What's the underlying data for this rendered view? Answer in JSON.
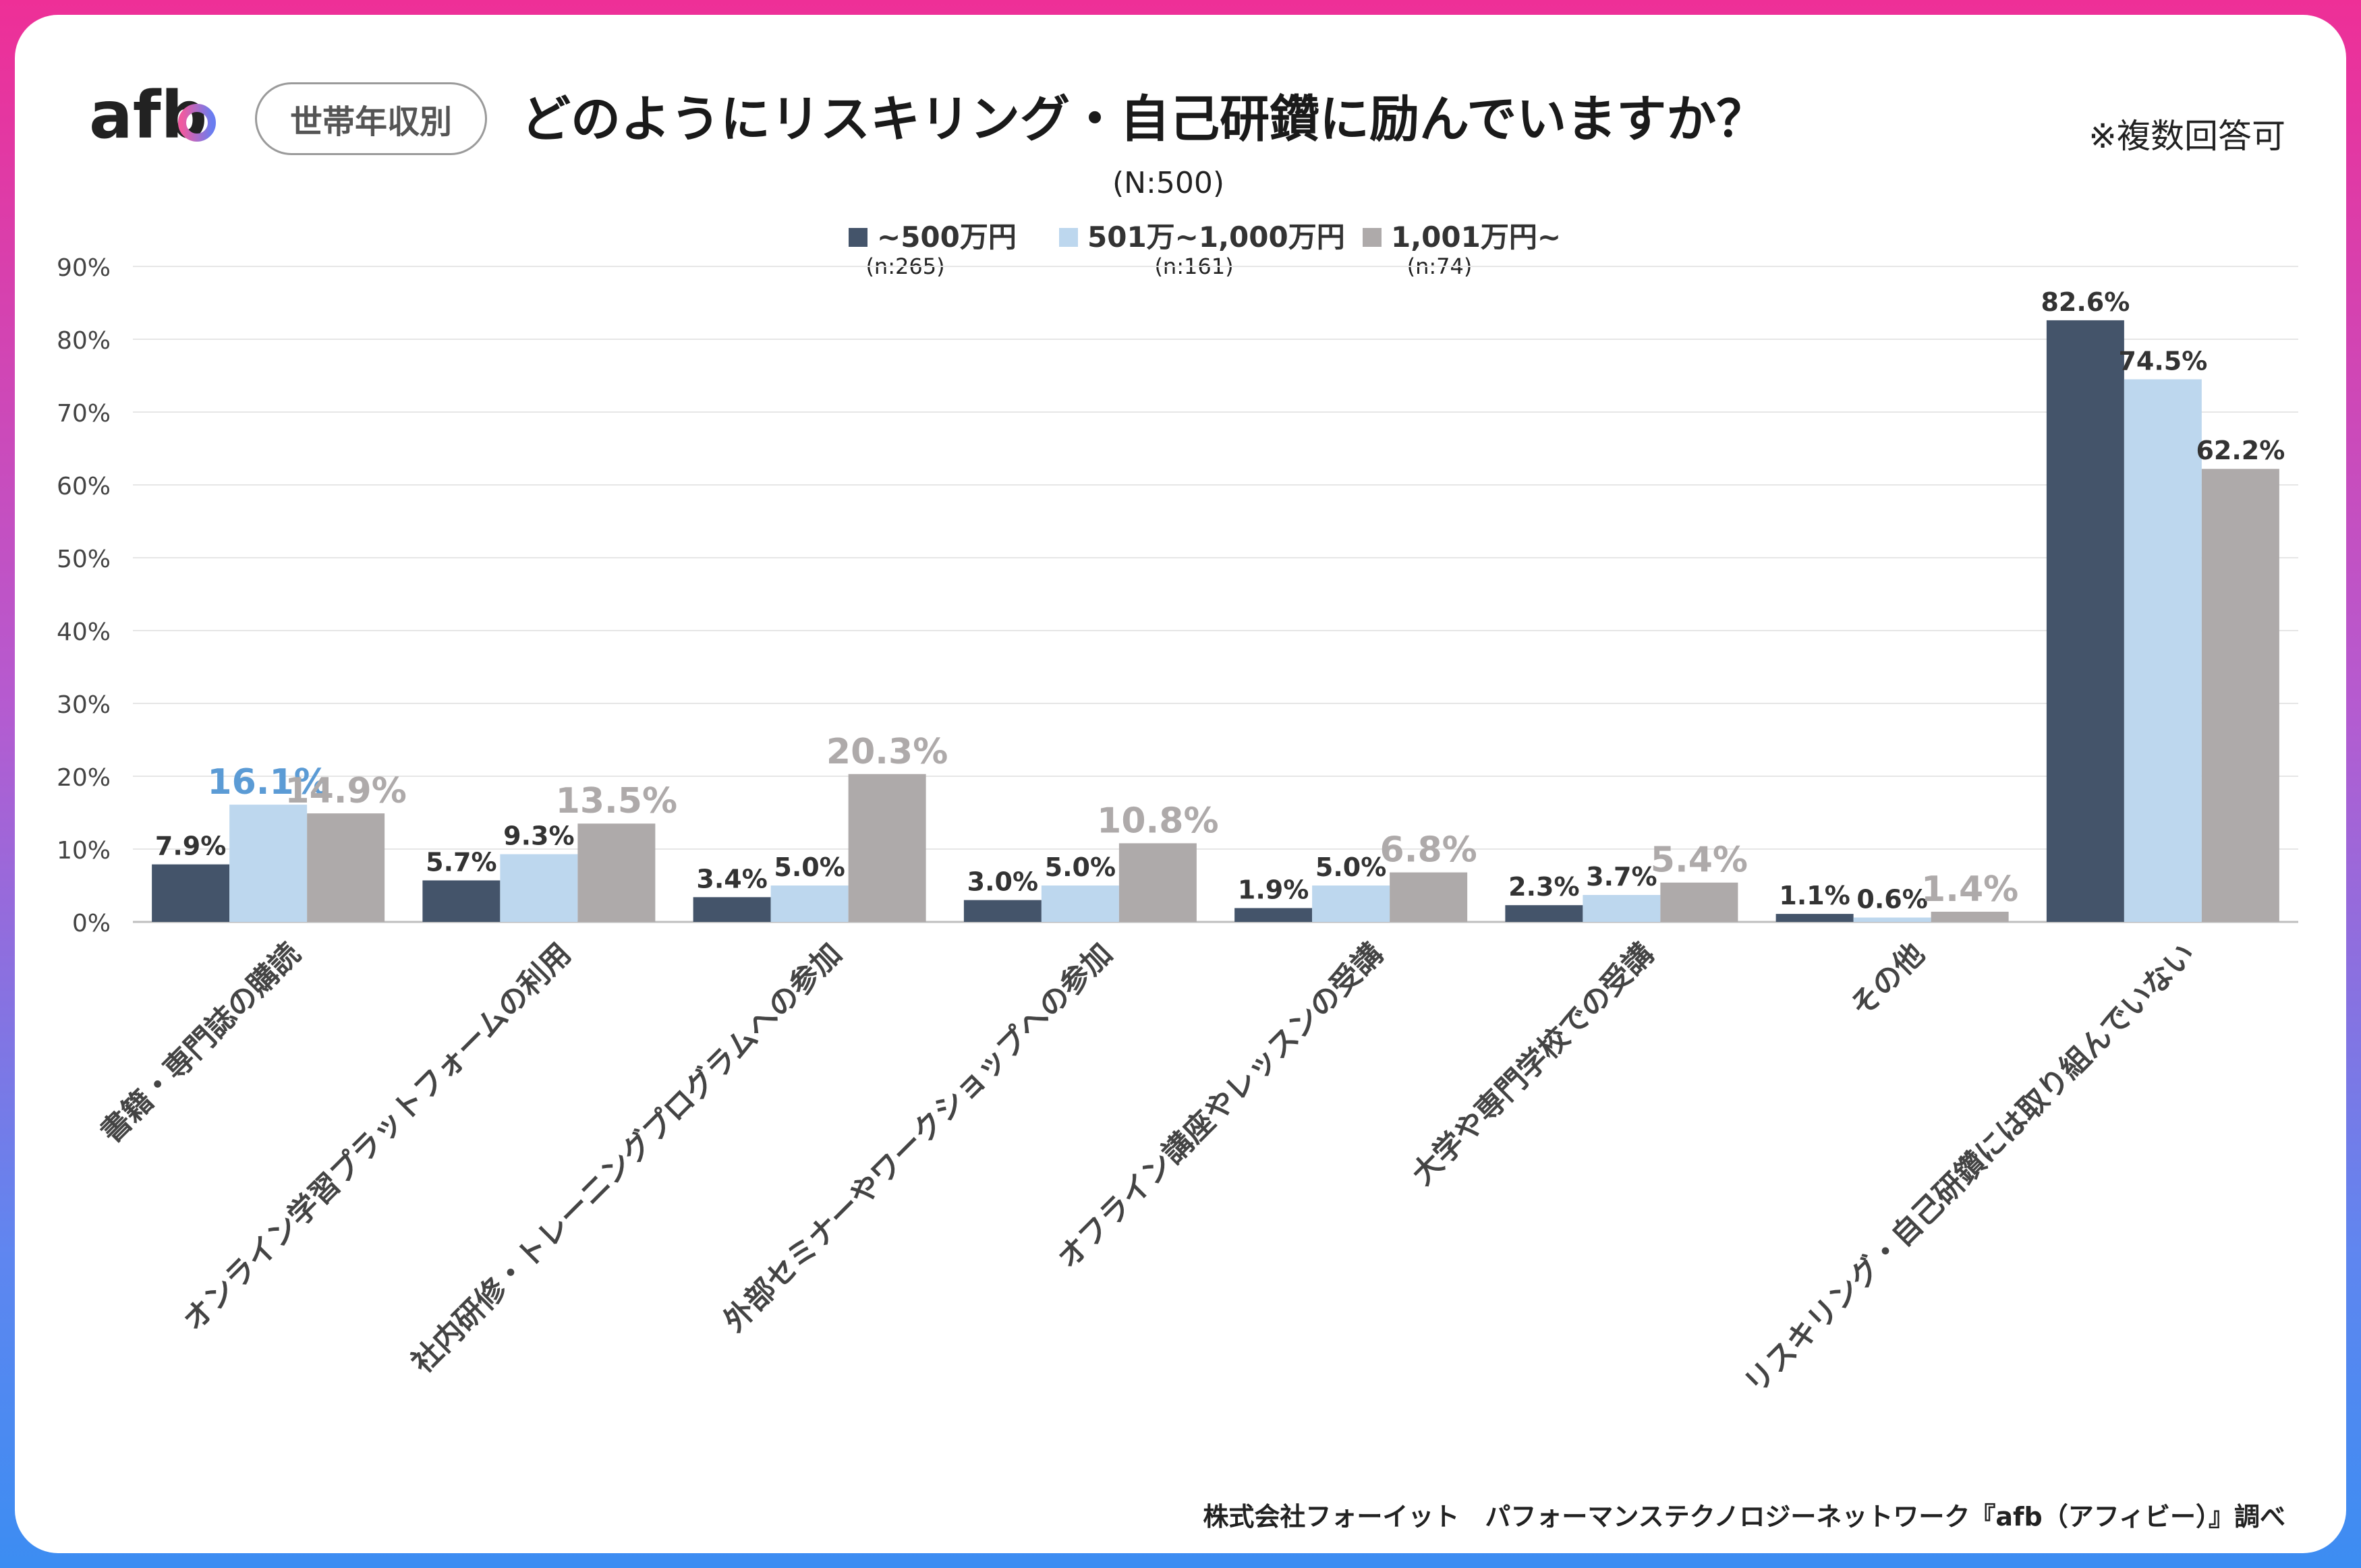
{
  "header": {
    "logo_text": "afb",
    "category_pill": "世帯年収別",
    "title": "どのようにリスキリング・自己研鑽に励んでいますか？",
    "note": "※複数回答可",
    "sample_size": "(N:500)"
  },
  "legend": [
    {
      "label": "~500万円",
      "sub": "(n:265)",
      "color": "#44546a"
    },
    {
      "label": "501万~1,000万円",
      "sub": "(n:161)",
      "color": "#bdd7ee"
    },
    {
      "label": "1,001万円~",
      "sub": "(n:74)",
      "color": "#aeaaaa"
    }
  ],
  "chart_data": {
    "type": "bar",
    "title": "どのようにリスキリング・自己研鑽に励んでいますか？",
    "ylim": [
      0,
      90
    ],
    "yticks": [
      "0%",
      "10%",
      "20%",
      "30%",
      "40%",
      "50%",
      "60%",
      "70%",
      "80%",
      "90%"
    ],
    "grid": true,
    "legend_position": "top",
    "categories": [
      "書籍・専門誌の購読",
      "オンライン学習プラットフォームの利用",
      "社内研修・トレーニングプログラムへの参加",
      "外部セミナーやワークショップへの参加",
      "オフライン講座やレッスンの受講",
      "大学や専門学校での受講",
      "その他",
      "リスキリング・自己研鑽には取り組んでいない"
    ],
    "series": [
      {
        "name": "~500万円",
        "values": [
          7.9,
          5.7,
          3.4,
          3.0,
          1.9,
          2.3,
          1.1,
          82.6
        ]
      },
      {
        "name": "501万~1,000万円",
        "values": [
          16.1,
          9.3,
          5.0,
          5.0,
          5.0,
          3.7,
          0.6,
          74.5
        ]
      },
      {
        "name": "1,001万円~",
        "values": [
          14.9,
          13.5,
          20.3,
          10.8,
          6.8,
          5.4,
          1.4,
          62.2
        ]
      }
    ],
    "value_labels": [
      [
        "7.9%",
        "5.7%",
        "3.4%",
        "3.0%",
        "1.9%",
        "2.3%",
        "1.1%",
        "82.6%"
      ],
      [
        "16.1%",
        "9.3%",
        "5.0%",
        "5.0%",
        "5.0%",
        "3.7%",
        "0.6%",
        "74.5%"
      ],
      [
        "14.9%",
        "13.5%",
        "20.3%",
        "10.8%",
        "6.8%",
        "5.4%",
        "1.4%",
        "62.2%"
      ]
    ],
    "highlight_colors": [
      "#44546a",
      "#5b9bd5",
      "#aeaaaa"
    ],
    "highlighted": [
      [
        1,
        7
      ],
      [
        0,
        1
      ],
      [
        0,
        2
      ],
      [
        1,
        2
      ],
      [
        2,
        2
      ],
      [
        3,
        2
      ],
      [
        4,
        2
      ],
      [
        5,
        2
      ],
      [
        6,
        2
      ]
    ]
  },
  "footer": "株式会社フォーイット　パフォーマンステクノロジーネットワーク『afb（アフィビー）』調べ"
}
